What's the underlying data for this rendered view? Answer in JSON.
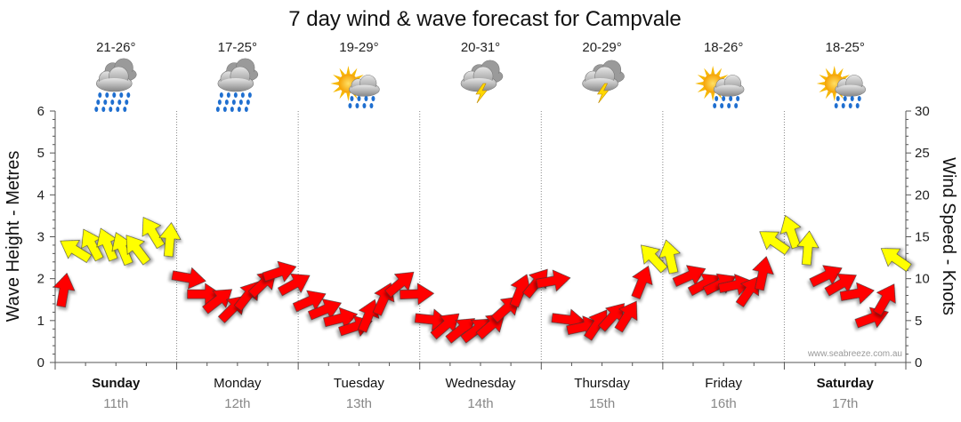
{
  "chart_data": {
    "type": "line",
    "title": "7 day wind & wave forecast for Campvale",
    "ylabel_left": "Wave Height - Metres",
    "ylabel_right": "Wind Speed - Knots",
    "ylim_left": [
      0,
      6
    ],
    "ylim_right": [
      0,
      30
    ],
    "yticks_left": [
      "0",
      "1",
      "2",
      "3",
      "4",
      "5",
      "6"
    ],
    "yticks_right": [
      "0",
      "5",
      "10",
      "15",
      "20",
      "25",
      "30"
    ],
    "credit": "www.seabreeze.com.au",
    "days": [
      {
        "name": "Sunday",
        "date": "11th",
        "bold": true,
        "temp": "21-26°",
        "icon": "heavy-rain-icon"
      },
      {
        "name": "Monday",
        "date": "12th",
        "bold": false,
        "temp": "17-25°",
        "icon": "heavy-rain-icon"
      },
      {
        "name": "Tuesday",
        "date": "13th",
        "bold": false,
        "temp": "19-29°",
        "icon": "sun-shower-icon"
      },
      {
        "name": "Wednesday",
        "date": "14th",
        "bold": false,
        "temp": "20-31°",
        "icon": "thunderstorm-icon"
      },
      {
        "name": "Thursday",
        "date": "15th",
        "bold": false,
        "temp": "20-29°",
        "icon": "thunderstorm-icon"
      },
      {
        "name": "Friday",
        "date": "16th",
        "bold": false,
        "temp": "18-26°",
        "icon": "sun-shower-icon"
      },
      {
        "name": "Saturday",
        "date": "17th",
        "bold": true,
        "temp": "18-25°",
        "icon": "sun-shower-icon"
      }
    ],
    "series": [
      {
        "name": "Wind Speed (knots)",
        "axis": "right",
        "x_hours": [
          0,
          3,
          6,
          9,
          12,
          15,
          18,
          21,
          24,
          27,
          30,
          33,
          36,
          39,
          42,
          45,
          48,
          51,
          54,
          57,
          60,
          63,
          66,
          69,
          72,
          75,
          78,
          81,
          84,
          87,
          90,
          93,
          96,
          99,
          102,
          105,
          108,
          111,
          114,
          117,
          120,
          123,
          126,
          129,
          132,
          135,
          138,
          141,
          144,
          147,
          150,
          153,
          156,
          159,
          162,
          165
        ],
        "values": [
          9,
          14,
          14.5,
          14.5,
          14,
          14,
          16,
          15,
          11,
          9,
          8,
          7,
          8.5,
          10,
          11.5,
          10,
          8,
          7,
          6,
          5,
          6,
          8,
          10,
          9,
          6,
          5,
          4.5,
          4.5,
          5,
          7,
          9,
          10,
          10.5,
          6,
          5,
          5,
          6,
          6,
          10,
          13,
          13,
          11,
          10,
          10,
          10,
          9,
          11,
          15,
          16,
          14,
          11,
          10,
          9,
          6,
          8,
          13
        ],
        "strong_threshold": 12.5
      }
    ],
    "legend_colors": {
      "light_wind": "#ff0000",
      "strong_wind": "#ffff00",
      "outline": "#333333"
    }
  }
}
